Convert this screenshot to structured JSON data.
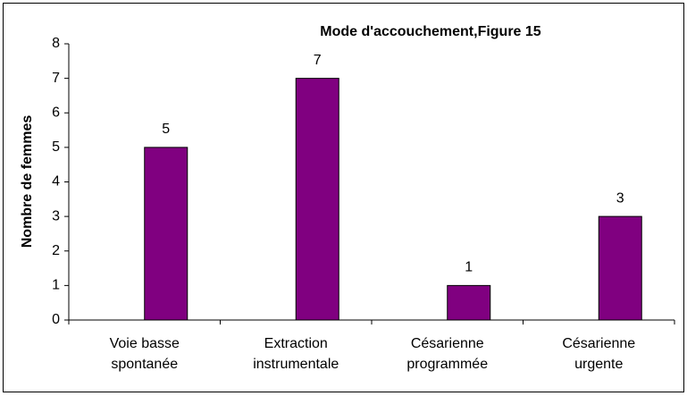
{
  "chart_data": {
    "type": "bar",
    "title": "Mode d'accouchement,Figure 15",
    "y_label": "Nombre de femmes",
    "categories": [
      [
        "Voie basse",
        "spontanée"
      ],
      [
        "Extraction",
        "instrumentale"
      ],
      [
        "Césarienne",
        "programmée"
      ],
      [
        "Césarienne",
        "urgente"
      ]
    ],
    "values": [
      5,
      7,
      1,
      3
    ],
    "color": "#800080",
    "ylim": [
      0,
      8
    ],
    "yticks": [
      0,
      1,
      2,
      3,
      4,
      5,
      6,
      7,
      8
    ],
    "grid": false
  }
}
